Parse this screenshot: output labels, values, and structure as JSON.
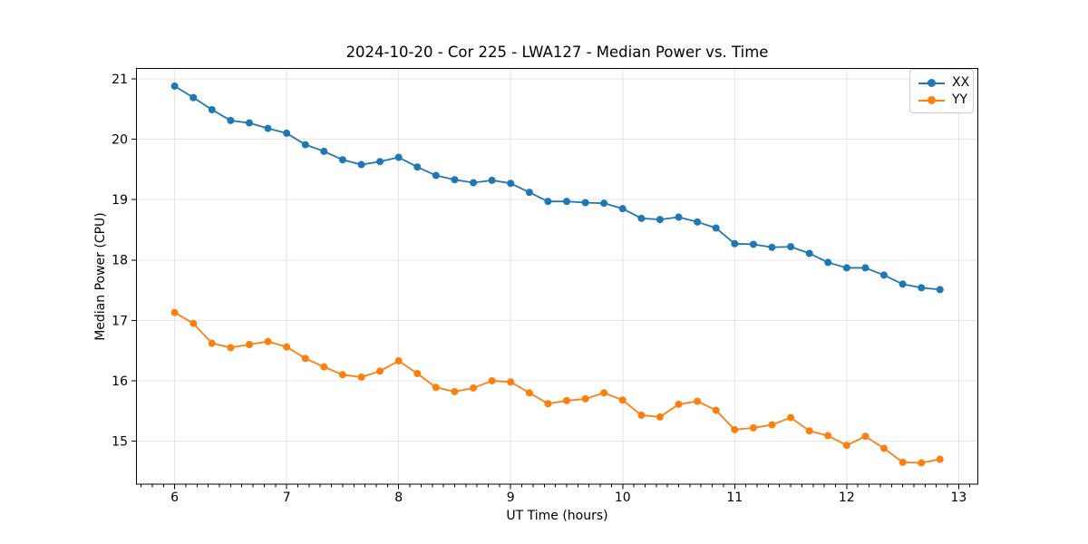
{
  "figure": {
    "background": "#ffffff"
  },
  "chart_data": {
    "type": "line",
    "title": "2024-10-20 - Cor 225 - LWA127 - Median Power vs. Time",
    "xlabel": "UT Time (hours)",
    "ylabel": "Median Power (CPU)",
    "xlim": [
      5.655,
      13.175
    ],
    "ylim": [
      14.28,
      21.18
    ],
    "x_ticks": [
      6,
      7,
      8,
      9,
      10,
      11,
      12,
      13
    ],
    "y_ticks": [
      15,
      16,
      17,
      18,
      19,
      20,
      21
    ],
    "x_minor_tick_step": 0.1,
    "grid": true,
    "grid_color": "#e6e6e6",
    "legend_position": "upper right",
    "marker": "circle",
    "x": [
      6.0,
      6.167,
      6.333,
      6.5,
      6.667,
      6.833,
      7.0,
      7.167,
      7.333,
      7.5,
      7.667,
      7.833,
      8.0,
      8.167,
      8.333,
      8.5,
      8.667,
      8.833,
      9.0,
      9.167,
      9.333,
      9.5,
      9.667,
      9.833,
      10.0,
      10.167,
      10.333,
      10.5,
      10.667,
      10.833,
      11.0,
      11.167,
      11.333,
      11.5,
      11.667,
      11.833,
      12.0,
      12.167,
      12.333,
      12.5,
      12.667,
      12.833
    ],
    "series": [
      {
        "name": "XX",
        "color": "#1f77b4",
        "values": [
          20.88,
          20.69,
          20.49,
          20.31,
          20.27,
          20.18,
          20.1,
          19.91,
          19.8,
          19.66,
          19.58,
          19.63,
          19.7,
          19.54,
          19.4,
          19.33,
          19.28,
          19.32,
          19.27,
          19.12,
          18.97,
          18.97,
          18.95,
          18.94,
          18.85,
          18.69,
          18.67,
          18.71,
          18.63,
          18.53,
          18.27,
          18.26,
          18.21,
          18.22,
          18.11,
          17.96,
          17.87,
          17.87,
          17.75,
          17.6,
          17.54,
          17.51
        ]
      },
      {
        "name": "YY",
        "color": "#ff7f0e",
        "values": [
          17.13,
          16.95,
          16.62,
          16.55,
          16.6,
          16.65,
          16.56,
          16.37,
          16.23,
          16.1,
          16.06,
          16.16,
          16.33,
          16.12,
          15.89,
          15.82,
          15.88,
          16.0,
          15.98,
          15.8,
          15.62,
          15.67,
          15.7,
          15.8,
          15.68,
          15.43,
          15.4,
          15.61,
          15.66,
          15.51,
          15.19,
          15.22,
          15.27,
          15.39,
          15.17,
          15.09,
          14.93,
          15.08,
          14.88,
          14.65,
          14.64,
          14.7
        ]
      }
    ]
  }
}
